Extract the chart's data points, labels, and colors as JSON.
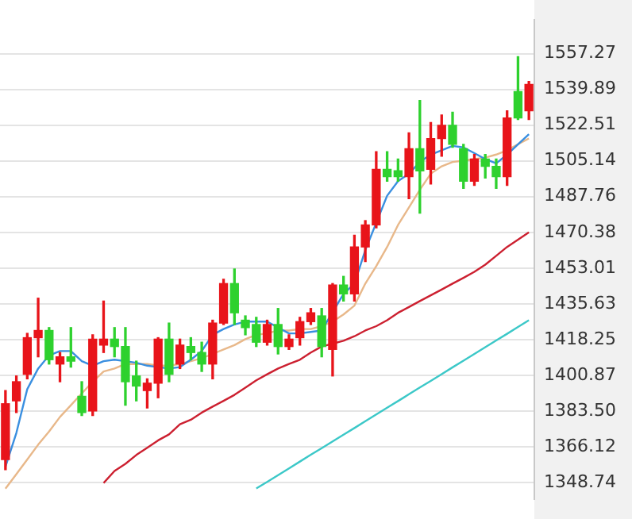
{
  "chart_data": {
    "type": "candlestick",
    "categories": [
      null,
      null,
      null,
      null,
      null,
      null,
      null,
      null,
      null,
      null,
      null,
      null,
      null,
      null,
      null,
      null,
      null,
      null,
      null,
      null,
      null,
      null,
      null,
      null,
      null,
      null,
      null,
      null,
      null,
      null,
      null,
      null,
      null,
      null,
      null,
      null,
      null,
      null,
      null,
      null,
      null,
      null,
      null,
      null,
      null,
      null,
      null,
      null,
      null
    ],
    "ohlc": [
      [
        1360.0,
        1393.5,
        1355.1,
        1387.1
      ],
      [
        1388.5,
        1400.6,
        1382.8,
        1397.8
      ],
      [
        1401.4,
        1421.3,
        1399.2,
        1419.2
      ],
      [
        1419.2,
        1438.4,
        1409.9,
        1422.7
      ],
      [
        1422.7,
        1424.1,
        1406.4,
        1408.5
      ],
      [
        1406.4,
        1412.0,
        1397.8,
        1409.9
      ],
      [
        1409.9,
        1424.1,
        1404.9,
        1407.8
      ],
      [
        1390.7,
        1397.8,
        1381.4,
        1382.8
      ],
      [
        1383.6,
        1420.6,
        1381.4,
        1418.5
      ],
      [
        1415.6,
        1437.0,
        1412.0,
        1418.5
      ],
      [
        1418.5,
        1424.1,
        1409.9,
        1414.9
      ],
      [
        1414.9,
        1424.1,
        1386.4,
        1397.8
      ],
      [
        1400.6,
        1407.8,
        1388.5,
        1395.7
      ],
      [
        1393.5,
        1399.2,
        1385.0,
        1397.1
      ],
      [
        1397.1,
        1419.2,
        1390.0,
        1418.5
      ],
      [
        1418.5,
        1426.3,
        1397.8,
        1401.4
      ],
      [
        1406.4,
        1418.5,
        1404.2,
        1415.6
      ],
      [
        1414.9,
        1419.2,
        1408.5,
        1412.0
      ],
      [
        1412.0,
        1417.0,
        1402.8,
        1406.4
      ],
      [
        1406.4,
        1427.7,
        1399.2,
        1426.3
      ],
      [
        1426.3,
        1447.6,
        1425.6,
        1445.5
      ],
      [
        1445.5,
        1452.6,
        1425.6,
        1431.3
      ],
      [
        1427.7,
        1429.8,
        1420.6,
        1424.1
      ],
      [
        1425.6,
        1429.1,
        1414.9,
        1417.0
      ],
      [
        1417.0,
        1427.7,
        1415.6,
        1425.6
      ],
      [
        1425.6,
        1433.4,
        1411.3,
        1414.9
      ],
      [
        1414.9,
        1420.6,
        1413.5,
        1418.5
      ],
      [
        1419.2,
        1429.1,
        1415.6,
        1427.0
      ],
      [
        1427.0,
        1433.4,
        1425.6,
        1431.3
      ],
      [
        1429.8,
        1433.4,
        1409.9,
        1414.9
      ],
      [
        1413.5,
        1445.5,
        1400.6,
        1444.8
      ],
      [
        1444.8,
        1449.0,
        1437.0,
        1440.5
      ],
      [
        1440.5,
        1469.0,
        1437.0,
        1463.3
      ],
      [
        1463.3,
        1476.1,
        1456.2,
        1474.0
      ],
      [
        1474.0,
        1509.6,
        1472.6,
        1501.0
      ],
      [
        1501.0,
        1509.6,
        1495.3,
        1497.5
      ],
      [
        1500.3,
        1506.0,
        1495.3,
        1497.5
      ],
      [
        1497.5,
        1518.8,
        1486.8,
        1511.0
      ],
      [
        1511.0,
        1534.5,
        1479.7,
        1500.3
      ],
      [
        1501.0,
        1523.8,
        1493.9,
        1516.0
      ],
      [
        1516.0,
        1527.4,
        1507.4,
        1522.4
      ],
      [
        1522.4,
        1528.8,
        1511.7,
        1513.2
      ],
      [
        1511.0,
        1513.2,
        1491.8,
        1495.3
      ],
      [
        1495.3,
        1508.2,
        1493.2,
        1506.0
      ],
      [
        1506.0,
        1508.2,
        1496.8,
        1502.5
      ],
      [
        1502.5,
        1506.0,
        1491.8,
        1497.5
      ],
      [
        1497.5,
        1529.5,
        1493.2,
        1526.0
      ],
      [
        1538.8,
        1555.8,
        1525.2,
        1526.0
      ],
      [
        1529.5,
        1543.7,
        1525.2,
        1542.3
      ]
    ],
    "colors": [
      "#e8141a",
      "#e8141a",
      "#e8141a",
      "#e8141a",
      "#2ed12e",
      "#e8141a",
      "#2ed12e",
      "#2ed12e",
      "#e8141a",
      "#e8141a",
      "#2ed12e",
      "#2ed12e",
      "#2ed12e",
      "#e8141a",
      "#e8141a",
      "#2ed12e",
      "#e8141a",
      "#2ed12e",
      "#2ed12e",
      "#e8141a",
      "#e8141a",
      "#2ed12e",
      "#2ed12e",
      "#2ed12e",
      "#e8141a",
      "#2ed12e",
      "#e8141a",
      "#e8141a",
      "#e8141a",
      "#2ed12e",
      "#e8141a",
      "#2ed12e",
      "#e8141a",
      "#e8141a",
      "#e8141a",
      "#2ed12e",
      "#2ed12e",
      "#e8141a",
      "#2ed12e",
      "#e8141a",
      "#e8141a",
      "#2ed12e",
      "#2ed12e",
      "#e8141a",
      "#2ed12e",
      "#2ed12e",
      "#e8141a",
      "#2ed12e",
      "#e8141a"
    ],
    "series": [
      {
        "type": "line",
        "color": "#3a8fe0",
        "values": [
          1356.5,
          1372.9,
          1394.2,
          1404.2,
          1410.6,
          1412.7,
          1412.7,
          1407.8,
          1405.6,
          1407.8,
          1408.5,
          1407.8,
          1407.0,
          1405.6,
          1404.9,
          1404.2,
          1404.9,
          1408.5,
          1412.7,
          1420.6,
          1423.4,
          1425.6,
          1427.0,
          1427.0,
          1427.0,
          1424.1,
          1421.3,
          1421.3,
          1422.0,
          1422.7,
          null,
          1440.5,
          1445.5,
          1461.8,
          null,
          1488.2,
          1495.3,
          1498.9,
          1504.6,
          1508.2,
          1510.3,
          1512.4,
          1511.7,
          1508.9,
          1506.0,
          1503.9,
          1508.2,
          1513.2,
          1518.1
        ]
      },
      {
        "type": "line",
        "color": "#e8b88a",
        "values": [
          1345.8,
          1352.9,
          1360.0,
          1367.2,
          1373.6,
          1380.7,
          1386.4,
          1392.1,
          1397.8,
          1402.8,
          1404.2,
          1406.4,
          1406.4,
          1406.4,
          1405.6,
          1405.6,
          1406.4,
          1407.8,
          1409.2,
          1411.3,
          1413.5,
          1415.6,
          1418.5,
          1420.6,
          1421.3,
          1422.7,
          1422.7,
          1423.4,
          1423.4,
          1424.8,
          1427.0,
          1430.5,
          1434.8,
          1445.5,
          1454.0,
          1463.3,
          1474.0,
          1482.5,
          1491.1,
          1498.9,
          1502.5,
          1504.6,
          1505.2,
          1506.0,
          1506.7,
          1508.2,
          1510.3,
          1513.2,
          1516.0
        ]
      },
      {
        "type": "line",
        "color": "#cc2030",
        "values": [
          null,
          null,
          null,
          null,
          null,
          null,
          null,
          null,
          null,
          1348.6,
          1354.4,
          1357.9,
          1362.2,
          1365.7,
          1369.3,
          1372.2,
          1377.1,
          1379.3,
          1382.8,
          1385.7,
          1388.5,
          1391.4,
          1394.9,
          1398.5,
          1401.4,
          1404.2,
          1406.4,
          1408.5,
          1412.0,
          1414.9,
          1416.3,
          1417.7,
          1419.9,
          1422.7,
          1424.8,
          1427.7,
          1431.3,
          1434.1,
          1437.0,
          1439.8,
          1442.6,
          1445.5,
          1448.3,
          1451.2,
          1454.7,
          1459.0,
          1463.3,
          1466.8,
          1470.4
        ]
      },
      {
        "type": "line",
        "color": "#3cc8c8",
        "values": [
          null,
          null,
          null,
          null,
          null,
          null,
          null,
          null,
          null,
          null,
          null,
          null,
          null,
          null,
          null,
          null,
          null,
          null,
          null,
          null,
          null,
          null,
          null,
          1345.9,
          1349.1,
          1352.4,
          1355.7,
          1359.0,
          1362.3,
          1365.5,
          1368.8,
          1372.1,
          1375.3,
          1378.6,
          1381.9,
          1385.2,
          1388.4,
          1391.7,
          1395.0,
          1398.2,
          1401.5,
          1404.8,
          1408.0,
          1411.3,
          1414.6,
          1417.9,
          1421.1,
          1424.4,
          1427.7
        ]
      }
    ],
    "ylim": [
      1340.8,
      1573.6
    ],
    "yticks": [
      1557.27,
      1539.89,
      1522.51,
      1505.14,
      1487.76,
      1470.38,
      1453.01,
      1435.63,
      1418.25,
      1400.87,
      {
        "value": 1383.5,
        "label": "1383.50"
      },
      1366.12,
      1348.74
    ],
    "grid": "y",
    "legend": false,
    "tick_labels": "y",
    "marker": "none",
    "line_style": "solid"
  }
}
